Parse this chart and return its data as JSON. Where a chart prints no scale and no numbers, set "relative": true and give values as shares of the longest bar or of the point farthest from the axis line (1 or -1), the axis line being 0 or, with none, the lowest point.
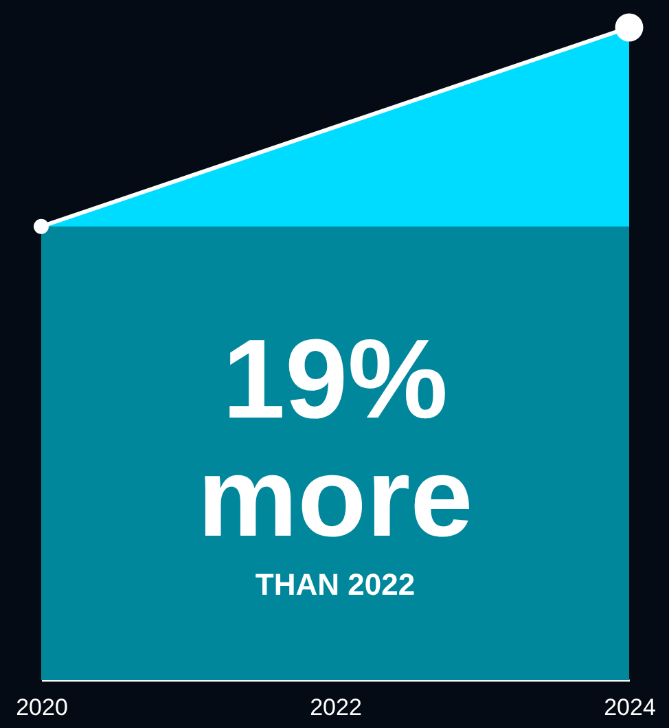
{
  "chart_data": {
    "type": "area",
    "relative": true,
    "x": [
      2020,
      2024
    ],
    "xlim": [
      2020,
      2024
    ],
    "xticks": [
      2020,
      2022,
      2024
    ],
    "series": [
      {
        "color": "#00dcff",
        "values": [
          0.695,
          1
        ],
        "marker": "circle"
      },
      {
        "color": "#00879c",
        "values": [
          0.695,
          0.695
        ],
        "marker": "none"
      }
    ],
    "annotations": [
      "19%",
      "more",
      "THAN 2022"
    ]
  }
}
